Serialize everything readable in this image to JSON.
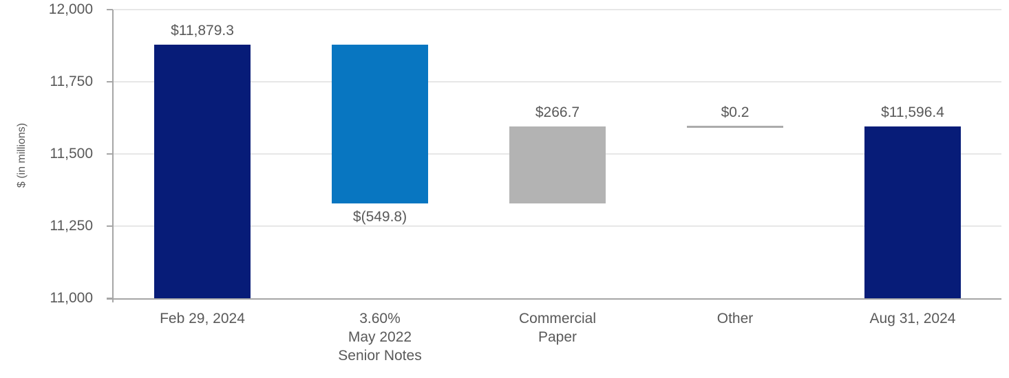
{
  "chart_data": {
    "type": "bar",
    "subtype": "waterfall",
    "ylabel": "$ (in millions)",
    "grid": true,
    "legend": false,
    "y_axis": {
      "min": 11000,
      "max": 12000,
      "tick_interval": 250,
      "ticks": [
        {
          "value": 12000,
          "label": "12,000"
        },
        {
          "value": 11750,
          "label": "11,750"
        },
        {
          "value": 11500,
          "label": "11,500"
        },
        {
          "value": 11250,
          "label": "11,250"
        },
        {
          "value": 11000,
          "label": "11,000"
        }
      ]
    },
    "categories": [
      "Feb 29, 2024",
      "3.60% May 2022 Senior Notes",
      "Commercial Paper",
      "Other",
      "Aug 31, 2024"
    ],
    "columns": [
      {
        "id": "feb-29-2024",
        "category_lines": [
          "Feb 29, 2024"
        ],
        "value": 11879.3,
        "value_label": "$11,879.3",
        "label_position": "above",
        "segment": [
          11000,
          11879.3
        ],
        "color_key": "navy",
        "style": "bar"
      },
      {
        "id": "senior-notes",
        "category_lines": [
          "3.60%",
          "May 2022",
          "Senior Notes"
        ],
        "value": -549.8,
        "value_label": "$(549.8)",
        "label_position": "below",
        "segment": [
          11329.5,
          11879.3
        ],
        "color_key": "blue",
        "style": "bar"
      },
      {
        "id": "commercial-paper",
        "category_lines": [
          "Commercial",
          "Paper"
        ],
        "value": 266.7,
        "value_label": "$266.7",
        "label_position": "above",
        "segment": [
          11329.5,
          11596.2
        ],
        "color_key": "gray",
        "style": "bar"
      },
      {
        "id": "other",
        "category_lines": [
          "Other"
        ],
        "value": 0.2,
        "value_label": "$0.2",
        "label_position": "above",
        "segment": [
          11596.2,
          11596.4
        ],
        "color_key": "line",
        "style": "line"
      },
      {
        "id": "aug-31-2024",
        "category_lines": [
          "Aug 31, 2024"
        ],
        "value": 11596.4,
        "value_label": "$11,596.4",
        "label_position": "above",
        "segment": [
          11000,
          11596.4
        ],
        "color_key": "navy",
        "style": "bar"
      }
    ],
    "colors": {
      "navy": "#071C78",
      "blue": "#0876C1",
      "gray": "#B3B3B3",
      "line": "#ABABAB",
      "gridline": "#E7E7E7",
      "axis": "#A6A6A6",
      "text": "#595959"
    }
  }
}
